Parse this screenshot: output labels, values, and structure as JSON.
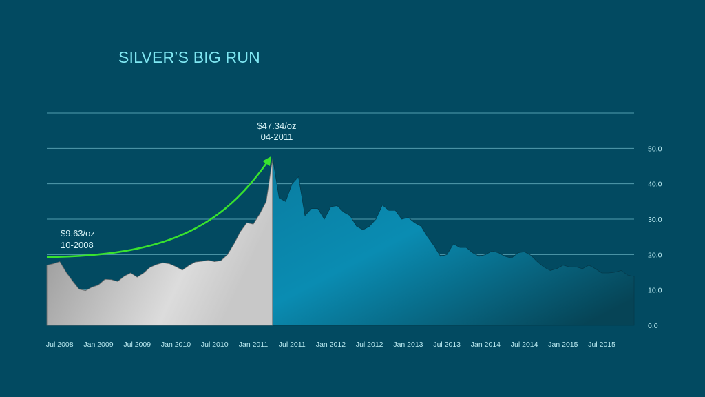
{
  "chart_data": {
    "type": "area",
    "title": "SILVER’S BIG RUN",
    "xlabel": "",
    "ylabel": "",
    "ylim": [
      0,
      60
    ],
    "yticks": [
      {
        "value": 0,
        "label": "0.0"
      },
      {
        "value": 10,
        "label": "10.0"
      },
      {
        "value": 20,
        "label": "20.0"
      },
      {
        "value": 30,
        "label": "30.0"
      },
      {
        "value": 40,
        "label": "40.0"
      },
      {
        "value": 50,
        "label": "50.0"
      }
    ],
    "xlim": [
      "2008-05",
      "2015-12"
    ],
    "xticks": [
      {
        "value": "2008-07",
        "label": "Jul 2008"
      },
      {
        "value": "2009-01",
        "label": "Jan 2009"
      },
      {
        "value": "2009-07",
        "label": "Jul 2009"
      },
      {
        "value": "2010-01",
        "label": "Jan 2010"
      },
      {
        "value": "2010-07",
        "label": "Jul 2010"
      },
      {
        "value": "2011-01",
        "label": "Jan 2011"
      },
      {
        "value": "2011-07",
        "label": "Jul 2011"
      },
      {
        "value": "2012-01",
        "label": "Jan 2012"
      },
      {
        "value": "2012-07",
        "label": "Jul 2012"
      },
      {
        "value": "2013-01",
        "label": "Jan 2013"
      },
      {
        "value": "2013-07",
        "label": "Jul 2013"
      },
      {
        "value": "2014-01",
        "label": "Jan 2014"
      },
      {
        "value": "2014-07",
        "label": "Jul 2014"
      },
      {
        "value": "2015-01",
        "label": "Jan 2015"
      },
      {
        "value": "2015-07",
        "label": "Jul 2015"
      }
    ],
    "grid": true,
    "split_date": "2011-04",
    "series": [
      {
        "segment": "run",
        "x": [
          "2008-05",
          "2008-06",
          "2008-07",
          "2008-08",
          "2008-09",
          "2008-10",
          "2008-11",
          "2008-12",
          "2009-01",
          "2009-02",
          "2009-03",
          "2009-04",
          "2009-05",
          "2009-06",
          "2009-07",
          "2009-08",
          "2009-09",
          "2009-10",
          "2009-11",
          "2009-12",
          "2010-01",
          "2010-02",
          "2010-03",
          "2010-04",
          "2010-05",
          "2010-06",
          "2010-07",
          "2010-08",
          "2010-09",
          "2010-10",
          "2010-11",
          "2010-12",
          "2011-01",
          "2011-02",
          "2011-03",
          "2011-04"
        ],
        "values": [
          17.0,
          17.4,
          18.0,
          15.0,
          12.5,
          10.2,
          9.8,
          10.8,
          11.4,
          13.0,
          12.9,
          12.4,
          13.9,
          14.8,
          13.6,
          14.8,
          16.4,
          17.2,
          17.7,
          17.4,
          16.6,
          15.6,
          16.9,
          17.9,
          18.1,
          18.4,
          18.0,
          18.3,
          20.0,
          23.0,
          26.5,
          29.0,
          28.6,
          31.5,
          35.0,
          47.3
        ]
      },
      {
        "segment": "decline",
        "x": [
          "2011-04",
          "2011-05",
          "2011-06",
          "2011-07",
          "2011-08",
          "2011-09",
          "2011-10",
          "2011-11",
          "2011-12",
          "2012-01",
          "2012-02",
          "2012-03",
          "2012-04",
          "2012-05",
          "2012-06",
          "2012-07",
          "2012-08",
          "2012-09",
          "2012-10",
          "2012-11",
          "2012-12",
          "2013-01",
          "2013-02",
          "2013-03",
          "2013-04",
          "2013-05",
          "2013-06",
          "2013-07",
          "2013-08",
          "2013-09",
          "2013-10",
          "2013-11",
          "2013-12",
          "2014-01",
          "2014-02",
          "2014-03",
          "2014-04",
          "2014-05",
          "2014-06",
          "2014-07",
          "2014-08",
          "2014-09",
          "2014-10",
          "2014-11",
          "2014-12",
          "2015-01",
          "2015-02",
          "2015-03",
          "2015-04",
          "2015-05",
          "2015-06",
          "2015-07",
          "2015-08",
          "2015-09",
          "2015-10",
          "2015-11",
          "2015-12"
        ],
        "values": [
          47.3,
          36.0,
          35.0,
          40.0,
          42.0,
          31.0,
          33.0,
          33.0,
          30.0,
          33.5,
          33.8,
          32.0,
          31.0,
          28.0,
          27.0,
          28.0,
          30.0,
          34.0,
          32.5,
          32.5,
          30.0,
          30.5,
          29.0,
          28.0,
          25.0,
          22.5,
          19.5,
          20.0,
          23.0,
          22.0,
          22.0,
          20.5,
          19.5,
          20.0,
          21.0,
          20.5,
          19.5,
          19.0,
          20.5,
          20.8,
          19.8,
          18.0,
          16.5,
          15.5,
          16.0,
          17.0,
          16.5,
          16.5,
          16.0,
          17.0,
          16.0,
          14.8,
          14.8,
          15.0,
          15.5,
          14.2,
          13.8
        ]
      }
    ],
    "annotations": [
      {
        "price": "$9.63/oz",
        "date": "10-2008",
        "x": "2008-10",
        "y": 9.63
      },
      {
        "price": "$47.34/oz",
        "date": "04-2011",
        "x": "2011-04",
        "y": 47.34
      }
    ],
    "colors": {
      "background": "#024a61",
      "run_fill_light": "#d9d9d9",
      "run_fill_dark": "#8a8a8a",
      "decline_fill_light": "#0a8fb4",
      "decline_fill_dark": "#053f52",
      "arrow": "#39e22e",
      "gridline": "#6fb9c8",
      "text": "#b9e9f0",
      "title": "#7fe7f2"
    }
  }
}
